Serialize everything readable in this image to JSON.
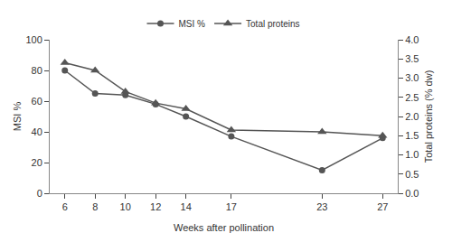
{
  "chart_data": {
    "type": "line",
    "x": [
      6,
      8,
      10,
      12,
      14,
      17,
      23,
      27
    ],
    "series": [
      {
        "name": "MSI %",
        "color": "#555555",
        "marker": "circle",
        "values": [
          80,
          65,
          64,
          58,
          50,
          37,
          15,
          36
        ]
      },
      {
        "name": "Total proteins",
        "color": "#555555",
        "marker": "triangle",
        "axis": "y2",
        "values": [
          3.4,
          3.2,
          2.65,
          2.35,
          2.2,
          1.65,
          1.6,
          1.5
        ]
      }
    ],
    "xlabel": "Weeks after pollination",
    "ylabel": "MSI %",
    "y2label": "Total proteins (% dw)",
    "xlim": [
      5,
      28
    ],
    "xticks": [
      6,
      8,
      10,
      12,
      14,
      17,
      23,
      27
    ],
    "ylim": [
      0,
      100
    ],
    "yticks": [
      0,
      20,
      40,
      60,
      80,
      100
    ],
    "y2lim": [
      0,
      4
    ],
    "y2ticks": [
      {
        "value": 0,
        "label": "0.0"
      },
      0.5,
      {
        "value": 1.0,
        "label": "1.0"
      },
      1.5,
      {
        "value": 2.0,
        "label": "2.0"
      },
      2.5,
      {
        "value": 3.0,
        "label": "3.0"
      },
      3.5,
      {
        "value": 4.0,
        "label": "4.0"
      }
    ],
    "grid": false,
    "legend": "top"
  }
}
